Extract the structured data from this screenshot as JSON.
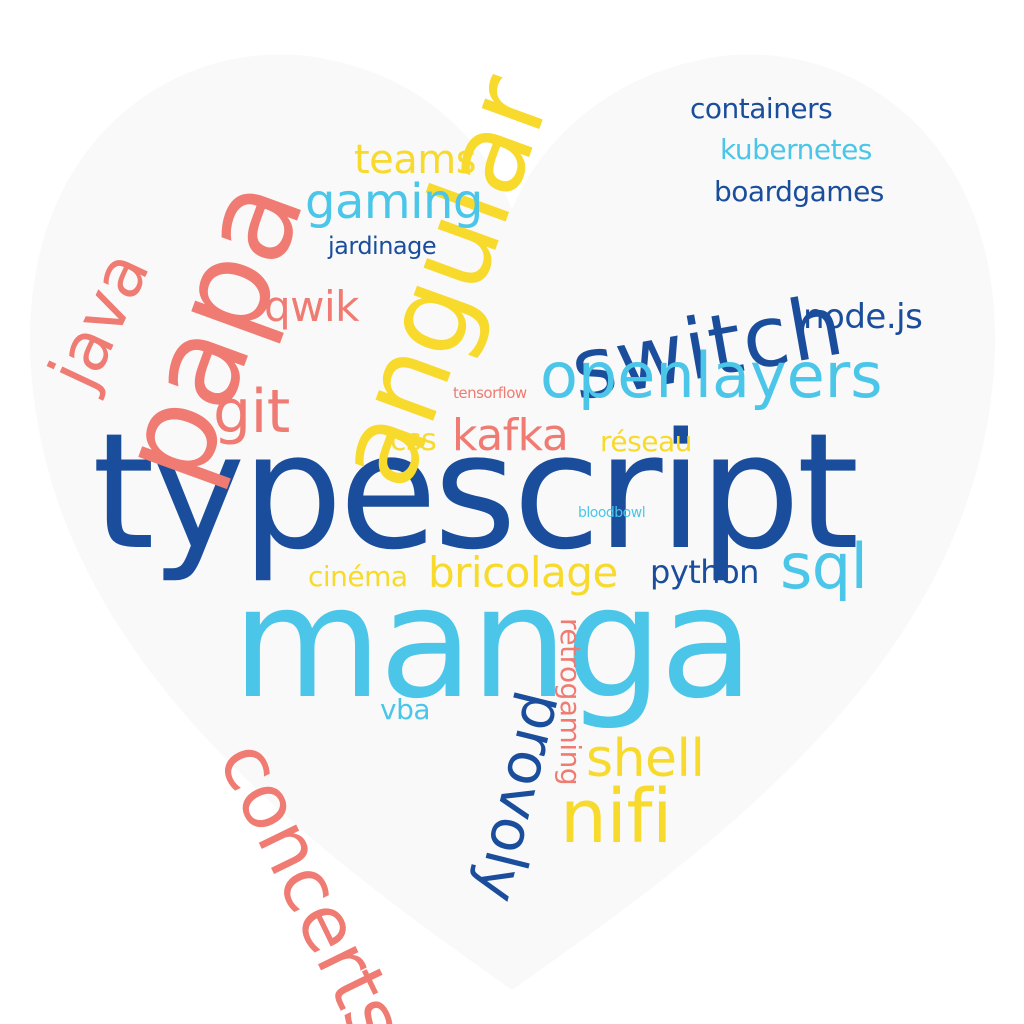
{
  "colors": {
    "heart_fill": "#f9f9f9",
    "navy": "#1a4e9c",
    "sky": "#4bc6e8",
    "yellow": "#f7da2c",
    "coral": "#ef7b72"
  },
  "words": {
    "typescript": "typescript",
    "manga": "manga",
    "angular": "angular",
    "papa": "papa",
    "java": "java",
    "switch": "switch",
    "openlayers": "openlayers",
    "nodejs": "node.js",
    "containers": "containers",
    "kubernetes": "kubernetes",
    "boardgames": "boardgames",
    "teams": "teams",
    "gaming": "gaming",
    "jardinage": "jardinage",
    "qwik": "qwik",
    "git": "git",
    "tensorflow": "tensorflow",
    "css": "css",
    "kafka": "kafka",
    "reseau": "réseau",
    "bloodbowl": "bloodbowl",
    "cinema": "cinéma",
    "bricolage": "bricolage",
    "python": "python",
    "sql": "sql",
    "vba": "vba",
    "concerts": "concerts",
    "provoly": "provoly",
    "retrogaming": "retrogaming",
    "shell": "shell",
    "nifi": "nifi"
  }
}
